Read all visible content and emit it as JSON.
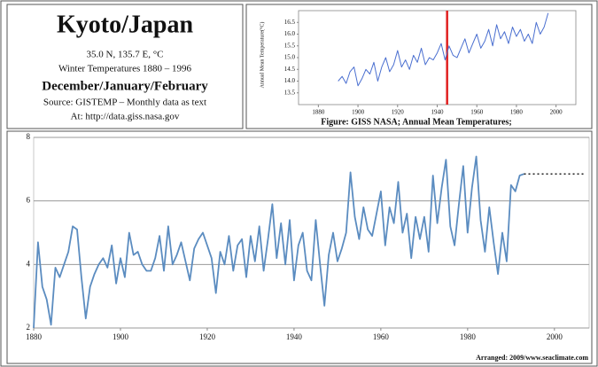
{
  "header": {
    "title": "Kyoto/Japan",
    "coords": "35.0 N, 135.7 E, °C",
    "period": "Winter Temperatures 1880 – 1996",
    "months": "December/January/February",
    "source": "Source: GISTEMP – Monthly data as text",
    "url": "At: http://data.giss.nasa.gov"
  },
  "credit": "Arranged: 2009/www.seaclimate.com",
  "chart_data": [
    {
      "type": "line",
      "caption": "Figure: GISS NASA; Annual Mean Temperatures;",
      "y_label": "Annual Mean Temperature(°C)",
      "x": [
        1890,
        1892,
        1894,
        1896,
        1898,
        1900,
        1902,
        1904,
        1906,
        1908,
        1910,
        1912,
        1914,
        1916,
        1918,
        1920,
        1922,
        1924,
        1926,
        1928,
        1930,
        1932,
        1934,
        1936,
        1938,
        1940,
        1942,
        1944,
        1946,
        1948,
        1950,
        1952,
        1954,
        1956,
        1958,
        1960,
        1962,
        1964,
        1966,
        1968,
        1970,
        1972,
        1974,
        1976,
        1978,
        1980,
        1982,
        1984,
        1986,
        1988,
        1990,
        1992,
        1994,
        1996
      ],
      "series": [
        {
          "color": "#4a6fd0",
          "values": [
            14.0,
            14.2,
            13.9,
            14.4,
            14.6,
            13.8,
            14.1,
            14.5,
            14.3,
            14.8,
            14.0,
            14.6,
            15.0,
            14.4,
            14.7,
            15.3,
            14.6,
            14.9,
            14.5,
            15.1,
            14.8,
            15.4,
            14.7,
            15.0,
            14.9,
            15.2,
            15.6,
            14.9,
            15.5,
            15.1,
            15.0,
            15.4,
            15.8,
            15.2,
            15.6,
            16.0,
            15.4,
            15.7,
            16.2,
            15.5,
            16.4,
            15.8,
            16.1,
            15.6,
            16.3,
            15.9,
            16.2,
            15.7,
            16.0,
            15.6,
            16.5,
            16.0,
            16.3,
            16.9
          ]
        }
      ],
      "xlim": [
        1870,
        2010
      ],
      "xticks": [
        1880,
        1900,
        1920,
        1940,
        1960,
        1980,
        2000
      ],
      "ylim": [
        13.0,
        17.0
      ],
      "yticks": [
        16.5,
        {
          "value": 16,
          "label": "16.0"
        },
        15.5,
        {
          "value": 15,
          "label": "15.0"
        },
        14.5,
        {
          "value": 14,
          "label": "14.0"
        },
        13.5
      ],
      "grid": false,
      "marker_line": {
        "value": 1945,
        "color": "#e02020"
      }
    },
    {
      "type": "line",
      "x": [
        1880,
        1881,
        1882,
        1883,
        1884,
        1885,
        1886,
        1887,
        1888,
        1889,
        1890,
        1891,
        1892,
        1893,
        1894,
        1895,
        1896,
        1897,
        1898,
        1899,
        1900,
        1901,
        1902,
        1903,
        1904,
        1905,
        1906,
        1907,
        1908,
        1909,
        1910,
        1911,
        1912,
        1913,
        1914,
        1915,
        1916,
        1917,
        1918,
        1919,
        1920,
        1921,
        1922,
        1923,
        1924,
        1925,
        1926,
        1927,
        1928,
        1929,
        1930,
        1931,
        1932,
        1933,
        1934,
        1935,
        1936,
        1937,
        1938,
        1939,
        1940,
        1941,
        1942,
        1943,
        1944,
        1945,
        1946,
        1947,
        1948,
        1949,
        1950,
        1951,
        1952,
        1953,
        1954,
        1955,
        1956,
        1957,
        1958,
        1959,
        1960,
        1961,
        1962,
        1963,
        1964,
        1965,
        1966,
        1967,
        1968,
        1969,
        1970,
        1971,
        1972,
        1973,
        1974,
        1975,
        1976,
        1977,
        1978,
        1979,
        1980,
        1981,
        1982,
        1983,
        1984,
        1985,
        1986,
        1987,
        1988,
        1989,
        1990,
        1991,
        1992,
        1993
      ],
      "series": [
        {
          "color": "#5b8cc0",
          "values": [
            2.0,
            4.7,
            3.3,
            2.9,
            2.1,
            3.9,
            3.6,
            4.0,
            4.4,
            5.2,
            5.1,
            3.6,
            2.3,
            3.3,
            3.7,
            4.0,
            4.2,
            3.9,
            4.6,
            3.4,
            4.2,
            3.6,
            5.0,
            4.3,
            4.4,
            4.0,
            3.8,
            3.8,
            4.2,
            4.9,
            3.8,
            5.2,
            4.0,
            4.3,
            4.7,
            4.1,
            3.5,
            4.5,
            4.8,
            5.0,
            4.6,
            4.2,
            3.1,
            4.4,
            4.0,
            4.9,
            3.8,
            4.6,
            4.8,
            3.6,
            4.9,
            4.1,
            5.2,
            3.8,
            4.8,
            5.9,
            4.2,
            5.3,
            4.0,
            5.4,
            3.5,
            4.6,
            5.0,
            3.8,
            3.5,
            5.4,
            4.0,
            2.7,
            4.3,
            5.0,
            4.1,
            4.5,
            5.0,
            6.9,
            5.5,
            4.8,
            5.8,
            5.1,
            4.9,
            5.6,
            6.3,
            4.6,
            5.8,
            5.3,
            6.6,
            5.0,
            5.6,
            4.2,
            5.5,
            4.8,
            5.5,
            4.4,
            6.8,
            5.3,
            6.4,
            7.3,
            5.2,
            4.6,
            5.9,
            7.1,
            5.0,
            6.4,
            7.4,
            5.4,
            4.4,
            5.8,
            4.7,
            3.7,
            5.0,
            4.1,
            6.5,
            6.3,
            6.8,
            6.85
          ]
        }
      ],
      "xlim": [
        1880,
        2008
      ],
      "xticks": [
        1880,
        1900,
        1920,
        1940,
        1960,
        1980,
        2000
      ],
      "ylim": [
        2,
        8
      ],
      "yticks": [
        2,
        4,
        6,
        8
      ],
      "grid": true,
      "dotted_line": {
        "value": 6.85,
        "from": 1993,
        "to": 2007
      }
    }
  ]
}
